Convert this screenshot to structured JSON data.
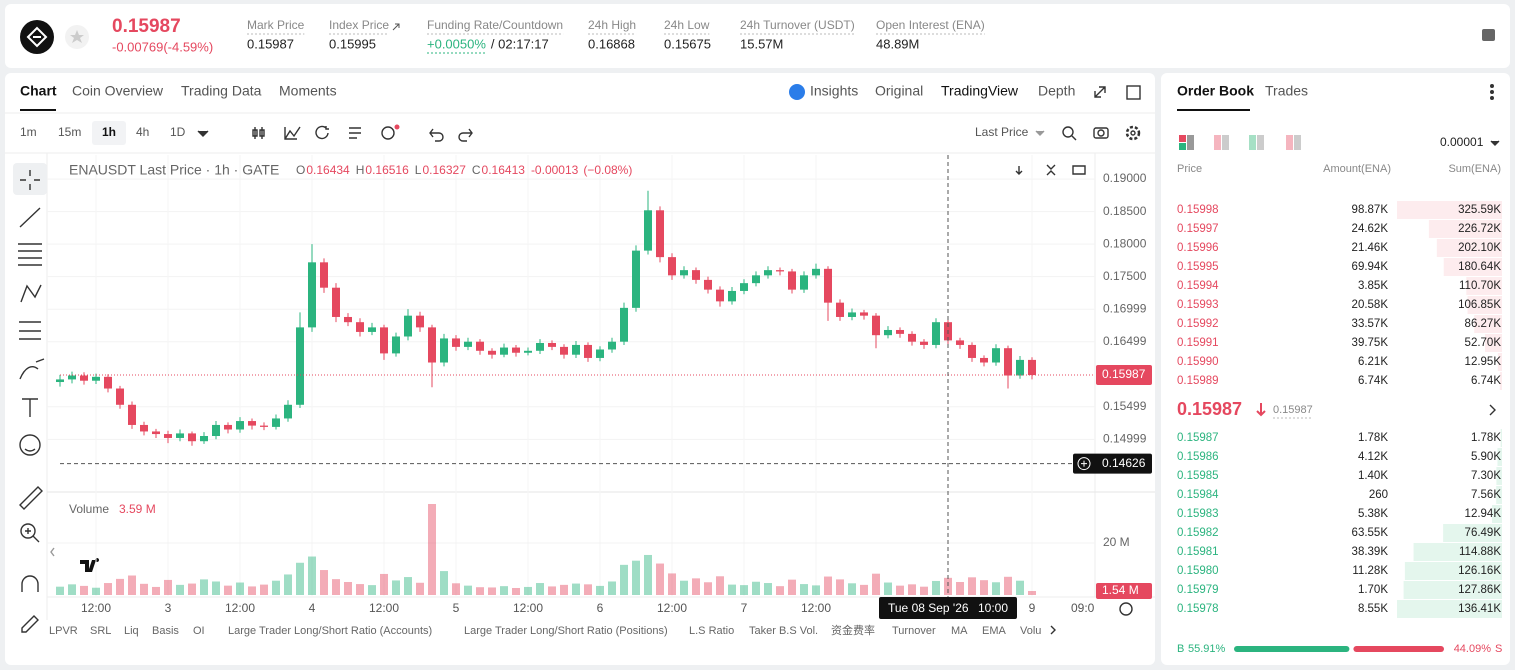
{
  "header": {
    "price": "0.15987",
    "change": "-0.00769(-4.59%)",
    "stats": [
      {
        "label": "Mark Price",
        "value": "0.15987"
      },
      {
        "label": "Index Price",
        "value": "0.15995"
      },
      {
        "label": "Funding Rate/Countdown",
        "value": "+0.0050%",
        "extra": "/ 02:17:17"
      },
      {
        "label": "24h High",
        "value": "0.16868"
      },
      {
        "label": "24h Low",
        "value": "0.15675"
      },
      {
        "label": "24h Turnover (USDT)",
        "value": "15.57M"
      },
      {
        "label": "Open Interest (ENA)",
        "value": "48.89M"
      }
    ]
  },
  "tabs": [
    "Chart",
    "Coin Overview",
    "Trading Data",
    "Moments"
  ],
  "views": [
    "Insights",
    "Original",
    "TradingView",
    "Depth"
  ],
  "intervals": [
    "1m",
    "15m",
    "1h",
    "4h",
    "1D"
  ],
  "price_type": "Last Price",
  "chart": {
    "type": "candlestick",
    "symbol": "ENAUSDT Last Price · 1h · GATE",
    "ohlc_labels": [
      "O",
      "H",
      "L",
      "C"
    ],
    "ohlc": [
      "0.16434",
      "0.16516",
      "0.16327",
      "0.16413"
    ],
    "change": "-0.00013",
    "change_pct": "(−0.08%)",
    "ylim": [
      0.1422,
      0.1937
    ],
    "yticks": [
      {
        "value": 0.19,
        "label": "0.19000"
      },
      {
        "value": 0.185,
        "label": "0.18500"
      },
      {
        "value": 0.18,
        "label": "0.18000"
      },
      {
        "value": 0.175,
        "label": "0.17500"
      },
      {
        "value": 0.16999,
        "label": "0.16999"
      },
      {
        "value": 0.16499,
        "label": "0.16499"
      },
      {
        "value": 0.15499,
        "label": "0.15499"
      },
      {
        "value": 0.14999,
        "label": "0.14999"
      }
    ],
    "last_price": 0.15987,
    "crosshair_price": 0.14626,
    "categories": [
      null,
      null,
      null,
      "12:00",
      null,
      null,
      null,
      null,
      null,
      "3",
      null,
      null,
      null,
      null,
      null,
      "12:00",
      null,
      null,
      null,
      null,
      null,
      "4",
      null,
      null,
      null,
      null,
      null,
      "12:00",
      null,
      null,
      null,
      null,
      null,
      "5",
      null,
      null,
      null,
      null,
      null,
      "12:00",
      null,
      null,
      null,
      null,
      null,
      "6",
      null,
      null,
      null,
      null,
      null,
      "12:00",
      null,
      null,
      null,
      null,
      null,
      "7",
      null,
      null,
      null,
      null,
      null,
      "12:00",
      null,
      null,
      null,
      null,
      null,
      null,
      null,
      null,
      null,
      null,
      null,
      null,
      null,
      null,
      null,
      null,
      null,
      "9"
    ],
    "edge_time": "09:0",
    "crosshair_time": "Tue 08 Sep '26",
    "crosshair_hour": "10:00",
    "candles": [
      [
        0.1588,
        0.1599,
        0.1581,
        0.1592
      ],
      [
        0.1592,
        0.1604,
        0.1586,
        0.1598
      ],
      [
        0.1598,
        0.1603,
        0.1584,
        0.159
      ],
      [
        0.159,
        0.1601,
        0.1585,
        0.1596
      ],
      [
        0.1596,
        0.16,
        0.1572,
        0.1578
      ],
      [
        0.1578,
        0.1582,
        0.1547,
        0.1553
      ],
      [
        0.1553,
        0.1558,
        0.1516,
        0.1522
      ],
      [
        0.1522,
        0.1527,
        0.1506,
        0.1512
      ],
      [
        0.1512,
        0.1516,
        0.1502,
        0.1508
      ],
      [
        0.1508,
        0.1513,
        0.1494,
        0.1502
      ],
      [
        0.1502,
        0.1515,
        0.1497,
        0.1509
      ],
      [
        0.1509,
        0.1512,
        0.149,
        0.1497
      ],
      [
        0.1497,
        0.1511,
        0.1493,
        0.1505
      ],
      [
        0.1505,
        0.1528,
        0.15,
        0.1522
      ],
      [
        0.1522,
        0.1526,
        0.1509,
        0.1515
      ],
      [
        0.1515,
        0.1534,
        0.151,
        0.1528
      ],
      [
        0.1528,
        0.1532,
        0.1515,
        0.1521
      ],
      [
        0.1521,
        0.1526,
        0.1514,
        0.1519
      ],
      [
        0.1519,
        0.1538,
        0.1515,
        0.1532
      ],
      [
        0.1532,
        0.156,
        0.1527,
        0.1553
      ],
      [
        0.1553,
        0.1695,
        0.1548,
        0.1672
      ],
      [
        0.1672,
        0.18,
        0.1665,
        0.1772
      ],
      [
        0.1772,
        0.1778,
        0.1725,
        0.1733
      ],
      [
        0.1733,
        0.174,
        0.168,
        0.1688
      ],
      [
        0.1688,
        0.1694,
        0.1674,
        0.168
      ],
      [
        0.168,
        0.1686,
        0.1658,
        0.1665
      ],
      [
        0.1665,
        0.1679,
        0.166,
        0.1672
      ],
      [
        0.1672,
        0.1676,
        0.1622,
        0.1632
      ],
      [
        0.1632,
        0.1664,
        0.1627,
        0.1658
      ],
      [
        0.1658,
        0.17,
        0.1652,
        0.169
      ],
      [
        0.169,
        0.1696,
        0.1665,
        0.1672
      ],
      [
        0.1672,
        0.1676,
        0.158,
        0.1618
      ],
      [
        0.1618,
        0.1662,
        0.1612,
        0.1655
      ],
      [
        0.1655,
        0.166,
        0.1636,
        0.1642
      ],
      [
        0.1642,
        0.1656,
        0.1637,
        0.165
      ],
      [
        0.165,
        0.1654,
        0.163,
        0.1636
      ],
      [
        0.1636,
        0.164,
        0.1624,
        0.163
      ],
      [
        0.163,
        0.1647,
        0.1626,
        0.1641
      ],
      [
        0.1641,
        0.1645,
        0.1627,
        0.1633
      ],
      [
        0.1633,
        0.1641,
        0.1629,
        0.1636
      ],
      [
        0.1636,
        0.1654,
        0.1631,
        0.1648
      ],
      [
        0.1648,
        0.1652,
        0.1637,
        0.1642
      ],
      [
        0.1642,
        0.1646,
        0.1624,
        0.163
      ],
      [
        0.163,
        0.1651,
        0.1625,
        0.1645
      ],
      [
        0.1645,
        0.1649,
        0.1619,
        0.1625
      ],
      [
        0.1625,
        0.1643,
        0.162,
        0.1638
      ],
      [
        0.1638,
        0.1656,
        0.1633,
        0.165
      ],
      [
        0.165,
        0.171,
        0.1645,
        0.1702
      ],
      [
        0.1702,
        0.1798,
        0.1696,
        0.179
      ],
      [
        0.179,
        0.1882,
        0.1784,
        0.1852
      ],
      [
        0.1852,
        0.1858,
        0.1772,
        0.178
      ],
      [
        0.178,
        0.1786,
        0.1745,
        0.1752
      ],
      [
        0.1752,
        0.1766,
        0.1747,
        0.176
      ],
      [
        0.176,
        0.1764,
        0.1739,
        0.1745
      ],
      [
        0.1745,
        0.175,
        0.1724,
        0.173
      ],
      [
        0.173,
        0.1735,
        0.1704,
        0.1712
      ],
      [
        0.1712,
        0.1734,
        0.1707,
        0.1728
      ],
      [
        0.1728,
        0.1746,
        0.1723,
        0.174
      ],
      [
        0.174,
        0.1758,
        0.1735,
        0.1752
      ],
      [
        0.1752,
        0.1766,
        0.1747,
        0.176
      ],
      [
        0.176,
        0.1764,
        0.1752,
        0.1758
      ],
      [
        0.1758,
        0.1762,
        0.1724,
        0.173
      ],
      [
        0.173,
        0.1758,
        0.1725,
        0.1752
      ],
      [
        0.1752,
        0.177,
        0.1747,
        0.1762
      ],
      [
        0.1762,
        0.1766,
        0.1682,
        0.171
      ],
      [
        0.171,
        0.1715,
        0.1682,
        0.1688
      ],
      [
        0.1688,
        0.1701,
        0.1683,
        0.1695
      ],
      [
        0.1695,
        0.1699,
        0.1684,
        0.169
      ],
      [
        0.169,
        0.1694,
        0.164,
        0.166
      ],
      [
        0.166,
        0.1674,
        0.1655,
        0.1668
      ],
      [
        0.1668,
        0.1672,
        0.1656,
        0.1662
      ],
      [
        0.1662,
        0.1666,
        0.1644,
        0.165
      ],
      [
        0.165,
        0.1654,
        0.1639,
        0.1645
      ],
      [
        0.1645,
        0.1686,
        0.164,
        0.168
      ],
      [
        0.168,
        0.1684,
        0.1646,
        0.1652
      ],
      [
        0.1652,
        0.1656,
        0.1639,
        0.1645
      ],
      [
        0.1645,
        0.1649,
        0.1619,
        0.1625
      ],
      [
        0.1625,
        0.1629,
        0.1612,
        0.1618
      ],
      [
        0.1618,
        0.1646,
        0.1613,
        0.164
      ],
      [
        0.164,
        0.1644,
        0.1578,
        0.1598
      ],
      [
        0.1598,
        0.1628,
        0.1593,
        0.1622
      ],
      [
        0.1622,
        0.1626,
        0.1592,
        0.15987
      ]
    ],
    "volume_title": "Volume",
    "volume_value": "3.59 M",
    "volume_ylim": [
      0,
      40
    ],
    "volume_yticks": [
      {
        "value": 20,
        "label": "20 M"
      }
    ],
    "volume_last_label": "1.54 M",
    "volumes": [
      3.2,
      4.1,
      3.5,
      2.8,
      4.6,
      6.2,
      7.5,
      4.3,
      3.1,
      5.8,
      3.9,
      4.4,
      6.0,
      5.2,
      3.6,
      4.8,
      3.3,
      4.0,
      5.5,
      7.9,
      12.4,
      14.8,
      9.6,
      6.1,
      5.0,
      4.2,
      3.8,
      8.1,
      5.6,
      6.9,
      4.7,
      35,
      9.2,
      4.5,
      3.6,
      3.0,
      2.9,
      3.4,
      2.7,
      3.1,
      4.6,
      3.3,
      3.9,
      4.4,
      4.1,
      3.5,
      5.2,
      11.6,
      13.2,
      15.4,
      12.1,
      8.3,
      5.5,
      6.4,
      4.9,
      7.2,
      4.0,
      3.8,
      5.1,
      4.6,
      3.4,
      5.9,
      4.2,
      3.7,
      7.1,
      6.0,
      4.5,
      3.9,
      8.2,
      4.8,
      3.6,
      4.1,
      3.2,
      5.4,
      6.6,
      5.0,
      6.8,
      5.7,
      4.9,
      7.0,
      5.5,
      1.54
    ]
  },
  "indicators": [
    "LPVR",
    "SRL",
    "Liq",
    "Basis",
    "OI",
    "Large Trader Long/Short Ratio (Accounts)",
    "Large Trader Long/Short Ratio (Positions)",
    "L.S Ratio",
    "Taker B.S Vol.",
    "资金费率",
    "Turnover",
    "MA",
    "EMA",
    "Volu"
  ],
  "order_book": {
    "tabs": [
      "Order Book",
      "Trades"
    ],
    "precision": "0.00001",
    "columns": [
      "Price",
      "Amount(ENA)",
      "Sum(ENA)"
    ],
    "asks": [
      {
        "price": "0.15998",
        "amount": "98.87K",
        "sum": {
          "value": 325590,
          "label": "325.59K"
        }
      },
      {
        "price": "0.15997",
        "amount": "24.62K",
        "sum": {
          "value": 226720,
          "label": "226.72K"
        }
      },
      {
        "price": "0.15996",
        "amount": "21.46K",
        "sum": {
          "value": 202100,
          "label": "202.10K"
        }
      },
      {
        "price": "0.15995",
        "amount": "69.94K",
        "sum": {
          "value": 180640,
          "label": "180.64K"
        }
      },
      {
        "price": "0.15994",
        "amount": "3.85K",
        "sum": {
          "value": 110700,
          "label": "110.70K"
        }
      },
      {
        "price": "0.15993",
        "amount": "20.58K",
        "sum": {
          "value": 106850,
          "label": "106.85K"
        }
      },
      {
        "price": "0.15992",
        "amount": "33.57K",
        "sum": {
          "value": 86270,
          "label": "86.27K"
        }
      },
      {
        "price": "0.15991",
        "amount": "39.75K",
        "sum": {
          "value": 52700,
          "label": "52.70K"
        }
      },
      {
        "price": "0.15990",
        "amount": "6.21K",
        "sum": {
          "value": 12950,
          "label": "12.95K"
        }
      },
      {
        "price": "0.15989",
        "amount": "6.74K",
        "sum": {
          "value": 6740,
          "label": "6.74K"
        }
      }
    ],
    "mid_price": "0.15987",
    "mark_price": "0.15987",
    "bids": [
      {
        "price": "0.15987",
        "amount": "1.78K",
        "sum": {
          "value": 1780,
          "label": "1.78K"
        }
      },
      {
        "price": "0.15986",
        "amount": "4.12K",
        "sum": {
          "value": 5900,
          "label": "5.90K"
        }
      },
      {
        "price": "0.15985",
        "amount": "1.40K",
        "sum": {
          "value": 7300,
          "label": "7.30K"
        }
      },
      {
        "price": "0.15984",
        "amount": "260",
        "sum": {
          "value": 7560,
          "label": "7.56K"
        }
      },
      {
        "price": "0.15983",
        "amount": "5.38K",
        "sum": {
          "value": 12940,
          "label": "12.94K"
        }
      },
      {
        "price": "0.15982",
        "amount": "63.55K",
        "sum": {
          "value": 76490,
          "label": "76.49K"
        }
      },
      {
        "price": "0.15981",
        "amount": "38.39K",
        "sum": {
          "value": 114880,
          "label": "114.88K"
        }
      },
      {
        "price": "0.15980",
        "amount": "11.28K",
        "sum": {
          "value": 126160,
          "label": "126.16K"
        }
      },
      {
        "price": "0.15979",
        "amount": "1.70K",
        "sum": {
          "value": 127860,
          "label": "127.86K"
        }
      },
      {
        "price": "0.15978",
        "amount": "8.55K",
        "sum": {
          "value": 136410,
          "label": "136.41K"
        }
      }
    ],
    "buy_label": "B",
    "buy_ratio": {
      "value": 55.91,
      "label": "55.91%"
    },
    "sell_ratio": {
      "value": 44.09,
      "label": "44.09%"
    },
    "sell_label": "S"
  }
}
